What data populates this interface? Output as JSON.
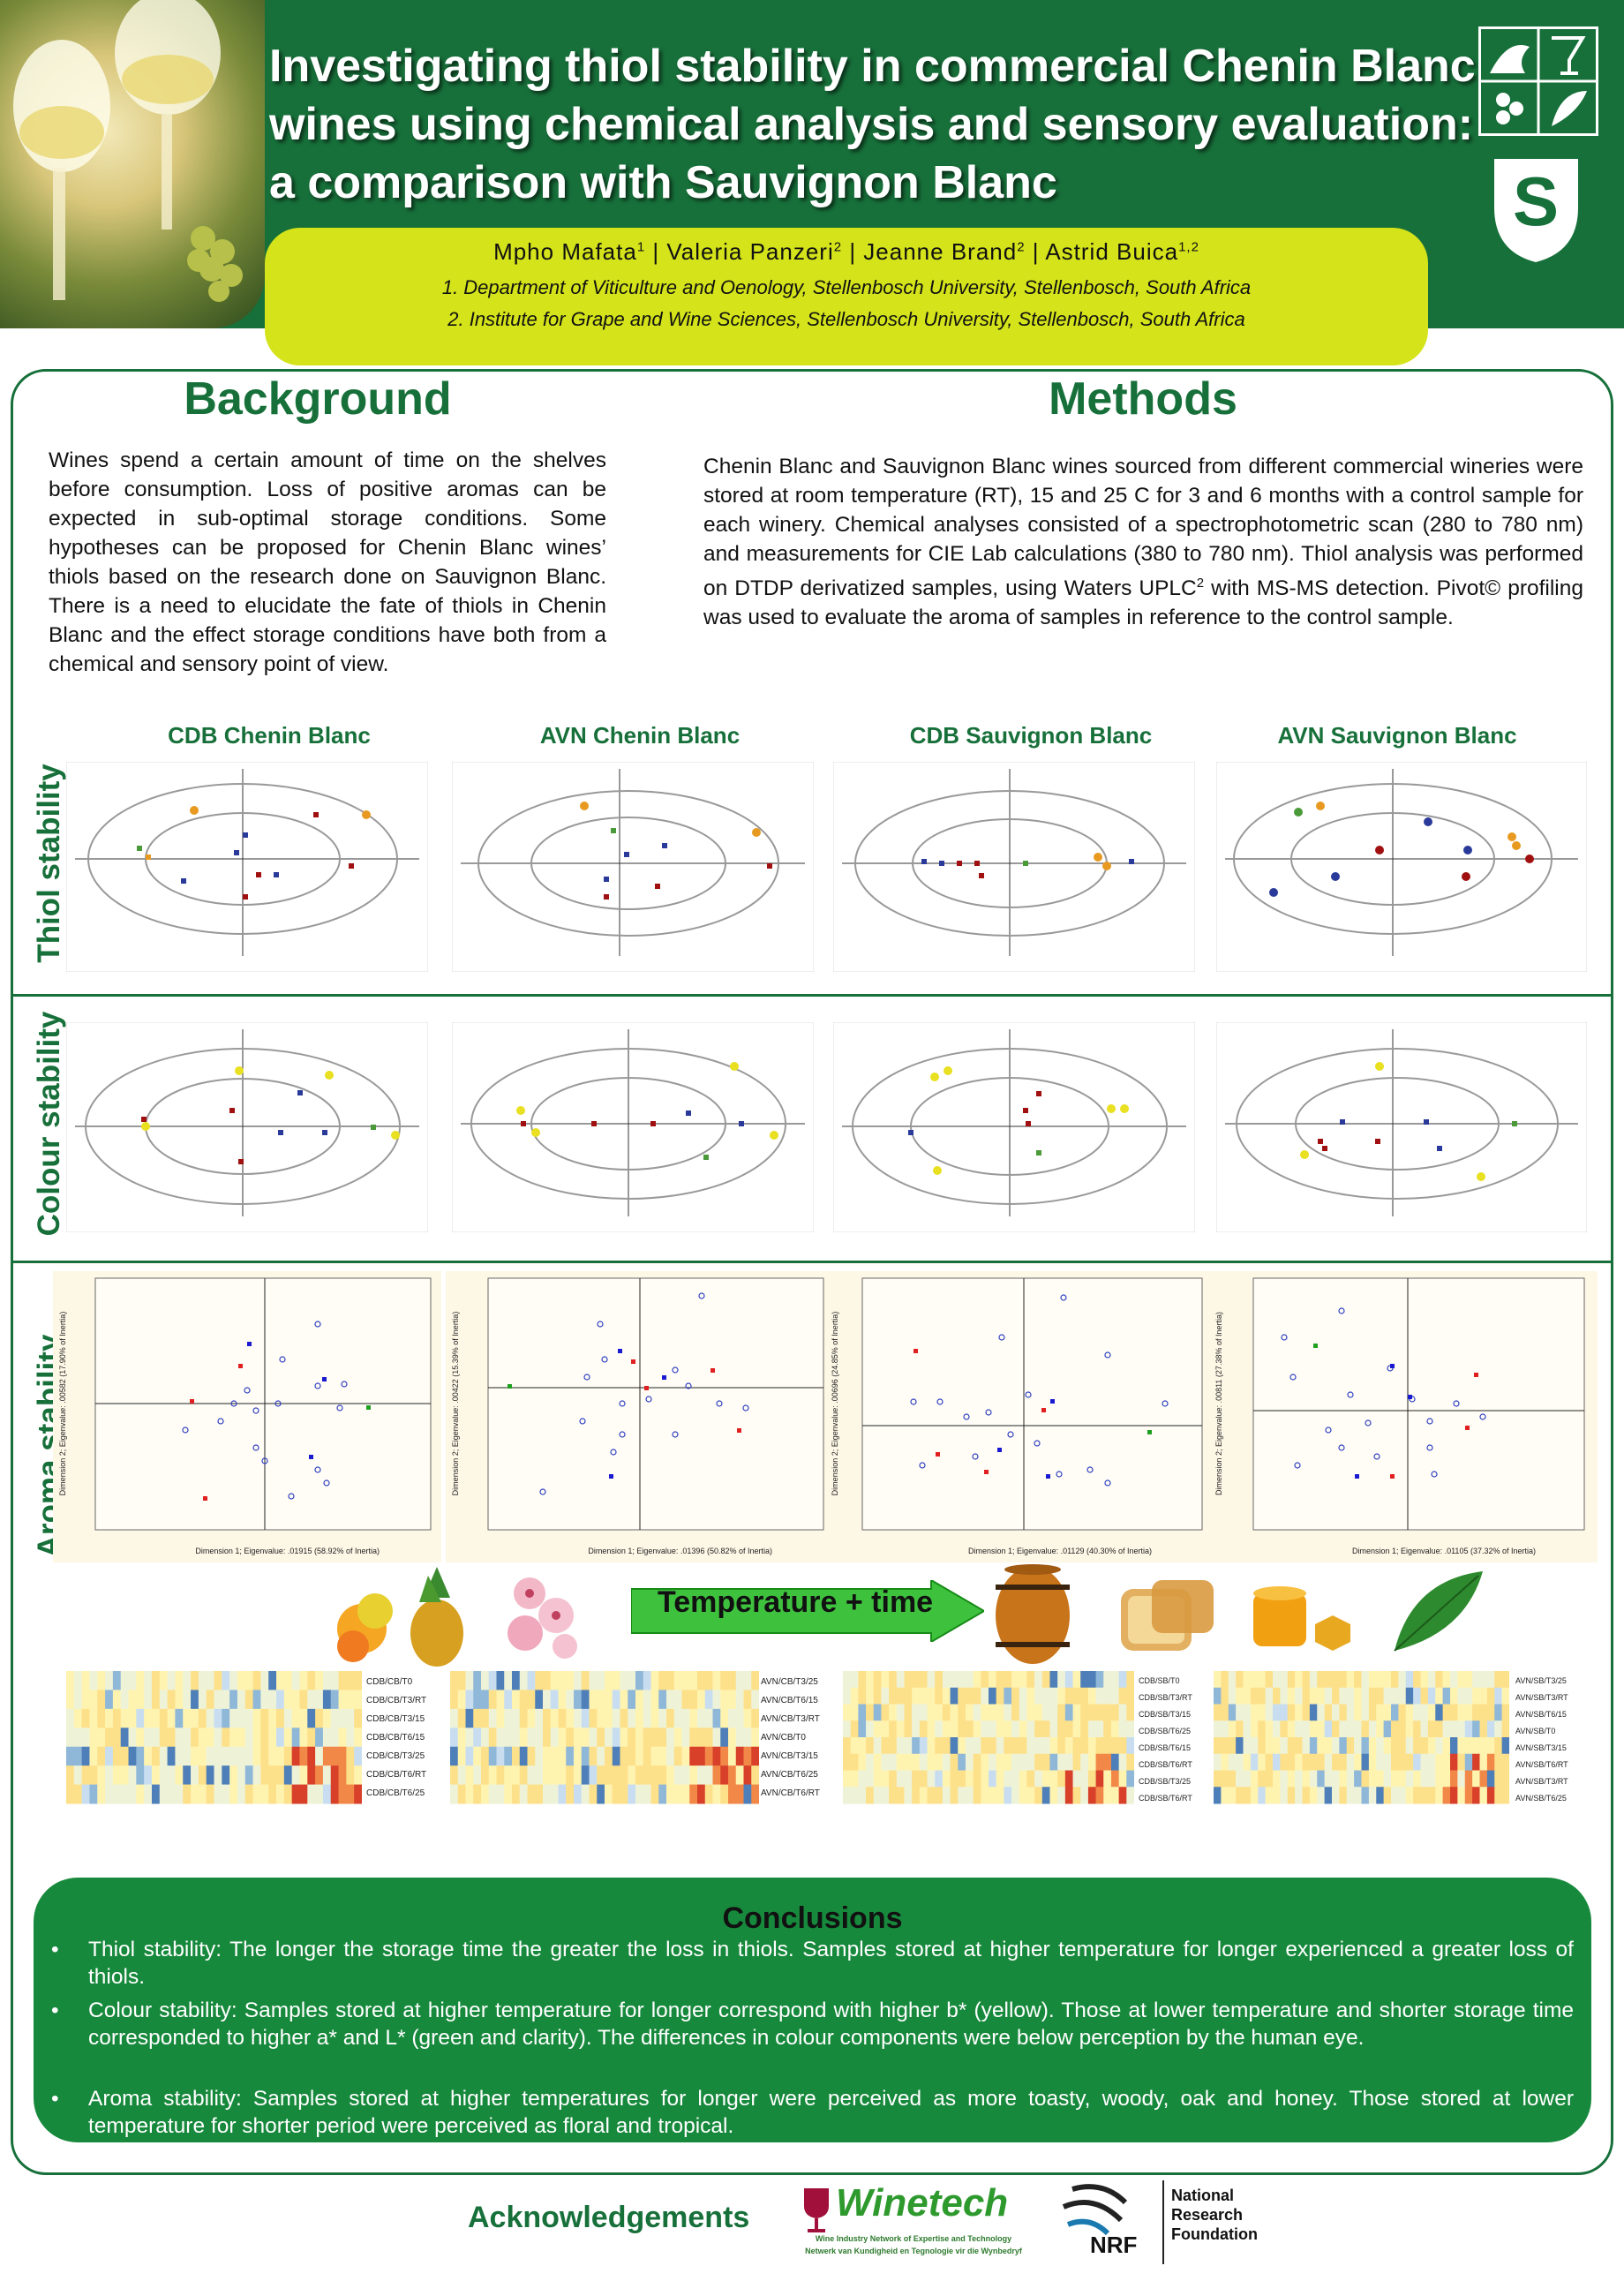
{
  "title": "Investigating thiol stability in commercial Chenin Blanc wines using chemical analysis and sensory evaluation: a comparison with Sauvignon Blanc",
  "authors": [
    {
      "name": "Mpho Mafata",
      "aff": "1"
    },
    {
      "name": "Valeria Panzeri",
      "aff": "2"
    },
    {
      "name": "Jeanne Brand",
      "aff": "2"
    },
    {
      "name": "Astrid Buica",
      "aff": "1,2"
    }
  ],
  "affiliations": [
    "1.  Department of Viticulture and Oenology, Stellenbosch University, Stellenbosch, South Africa",
    "2.  Institute for Grape and Wine Sciences, Stellenbosch University, Stellenbosch, South Africa"
  ],
  "background": {
    "heading": "Background",
    "text": "Wines spend a certain amount of time on the shelves before consumption. Loss of positive aromas can be expected in sub-optimal storage conditions. Some hypotheses can be proposed for Chenin Blanc wines’ thiols based on the research done on Sauvignon Blanc. There is a need to elucidate the fate of thiols in Chenin Blanc and the effect storage conditions have both from a chemical and sensory point of view."
  },
  "methods": {
    "heading": "Methods",
    "text_before": "Chenin Blanc and Sauvignon Blanc wines sourced from different commercial wineries were stored at room temperature (RT), 15 and 25 C for 3 and 6 months with a control sample for each winery. Chemical analyses consisted of a spectrophotometric scan (280 to 780 nm) and measurements for CIE Lab calculations (380 to 780 nm). Thiol analysis was performed on DTDP derivatized samples, using Waters UPLC",
    "superscript": "2",
    "text_after": " with MS-MS detection. Pivot© profiling was used to evaluate the aroma of samples in reference to the control sample."
  },
  "columns": [
    "CDB Chenin Blanc",
    "AVN Chenin Blanc",
    "CDB Sauvignon Blanc",
    "AVN Sauvignon Blanc"
  ],
  "row_labels": [
    "Thiol stability",
    "Colour stability",
    "Aroma stability"
  ],
  "arrow_label": "Temperature + time",
  "axis_labels": {
    "ca1": {
      "x": "Dimension 1; Eigenvalue: .01915 (58.92% of Inertia)",
      "y": "Dimension 2; Eigenvalue: .00582 (17.90% of Inertia)"
    },
    "ca2": {
      "x": "Dimension 1; Eigenvalue: .01396 (50.82% of Inertia)",
      "y": "Dimension 2; Eigenvalue: .00422 (15.39% of Inertia)"
    },
    "ca3": {
      "x": "Dimension 1; Eigenvalue: .01129 (40.30% of Inertia)",
      "y": "Dimension 2; Eigenvalue: .00696 (24.85% of Inertia)"
    },
    "ca4": {
      "x": "Dimension 1; Eigenvalue: .01105 (37.32% of Inertia)",
      "y": "Dimension 2; Eigenvalue: .00811 (27.38% of Inertia)"
    }
  },
  "heatmap_rows": {
    "h1": [
      "CDB/CB/T0",
      "CDB/CB/T3/RT",
      "CDB/CB/T3/15",
      "CDB/CB/T6/15",
      "CDB/CB/T3/25",
      "CDB/CB/T6/RT",
      "CDB/CB/T6/25"
    ],
    "h2": [
      "AVN/CB/T3/25",
      "AVN/CB/T6/15",
      "AVN/CB/T3/RT",
      "AVN/CB/T0",
      "AVN/CB/T3/15",
      "AVN/CB/T6/25",
      "AVN/CB/T6/RT"
    ],
    "h3": [
      "CDB/SB/T0",
      "CDB/SB/T3/RT",
      "CDB/SB/T3/15",
      "CDB/SB/T6/25",
      "CDB/SB/T6/15",
      "CDB/SB/T6/RT",
      "CDB/SB/T3/25",
      "CDB/SB/T6/RT"
    ],
    "h4": [
      "AVN/SB/T3/25",
      "AVN/SB/T3/RT",
      "AVN/SB/T6/15",
      "AVN/SB/T0",
      "AVN/SB/T3/15",
      "AVN/SB/T6/RT",
      "AVN/SB/T3/RT",
      "AVN/SB/T6/25"
    ]
  },
  "conclusions": {
    "heading": "Conclusions",
    "items": [
      "Thiol stability: The longer the storage time the greater the loss in thiols. Samples stored at higher temperature for longer experienced a greater loss of thiols.",
      "Colour stability: Samples stored at higher temperature for longer correspond with higher b* (yellow). Those at lower temperature and shorter storage time corresponded to higher a* and L* (green and clarity). The differences in colour components were  below perception by the human eye.",
      "Aroma stability: Samples stored at higher temperatures for longer were perceived as more toasty, woody, oak and honey. Those stored at lower temperature for shorter period were perceived as floral and tropical."
    ]
  },
  "acknowledgements": "Acknowledgements",
  "sponsors": {
    "winetech_name": "Winetech",
    "winetech_sub1": "Wine Industry Network of Expertise and Technology",
    "winetech_sub2": "Netwerk van Kundigheid en Tegnologie vir die Wynbedryf",
    "nrf_short": "NRF",
    "nrf_lines": [
      "National",
      "Research",
      "Foundation"
    ]
  },
  "colors": {
    "primary_green": "#17703a",
    "lime": "#d4e31a",
    "conclusion_green": "#17893c"
  }
}
